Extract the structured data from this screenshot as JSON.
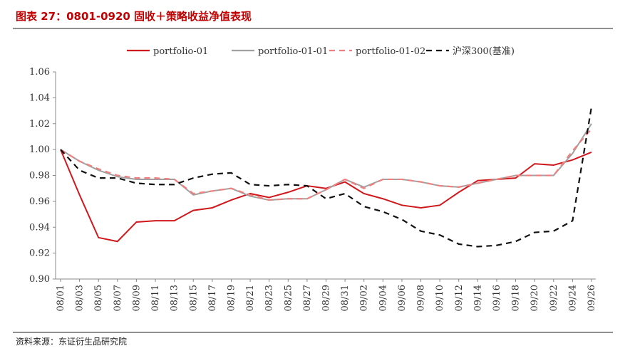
{
  "title": "图表 27：0801-0920 固收＋策略收益净值表现",
  "source": "资料来源：东证衍生品研究院",
  "chart_data": {
    "type": "line",
    "categories": [
      "08/01",
      "08/03",
      "08/05",
      "08/07",
      "08/09",
      "08/11",
      "08/13",
      "08/15",
      "08/17",
      "08/19",
      "08/21",
      "08/23",
      "08/25",
      "08/27",
      "08/29",
      "08/31",
      "09/02",
      "09/04",
      "09/06",
      "09/08",
      "09/10",
      "09/12",
      "09/14",
      "09/16",
      "09/18",
      "09/20",
      "09/22",
      "09/24",
      "09/26"
    ],
    "series": [
      {
        "name": "portfolio-01",
        "color": "#d0181c",
        "dash": "solid",
        "values": [
          1.0,
          0.965,
          0.932,
          0.929,
          0.944,
          0.945,
          0.945,
          0.953,
          0.955,
          0.961,
          0.966,
          0.963,
          0.967,
          0.972,
          0.97,
          0.975,
          0.966,
          0.962,
          0.957,
          0.955,
          0.957,
          0.967,
          0.976,
          0.977,
          0.978,
          0.989,
          0.988,
          0.992,
          0.998
        ]
      },
      {
        "name": "portfolio-01-01",
        "color": "#a0a0a0",
        "dash": "solid",
        "values": [
          1.0,
          0.991,
          0.984,
          0.979,
          0.977,
          0.977,
          0.977,
          0.965,
          0.968,
          0.97,
          0.964,
          0.961,
          0.962,
          0.962,
          0.969,
          0.977,
          0.971,
          0.977,
          0.977,
          0.975,
          0.972,
          0.971,
          0.974,
          0.977,
          0.98,
          0.98,
          0.98,
          0.997,
          1.02
        ]
      },
      {
        "name": "portfolio-01-02",
        "color": "#f08080",
        "dash": "dashed",
        "values": [
          1.0,
          0.991,
          0.985,
          0.98,
          0.978,
          0.978,
          0.977,
          0.966,
          0.968,
          0.97,
          0.965,
          0.961,
          0.962,
          0.962,
          0.969,
          0.977,
          0.97,
          0.977,
          0.977,
          0.975,
          0.972,
          0.971,
          0.974,
          0.977,
          0.98,
          0.98,
          0.98,
          0.999,
          1.016
        ]
      },
      {
        "name": "沪深300(基准)",
        "color": "#111111",
        "dash": "dashed",
        "values": [
          1.0,
          0.984,
          0.978,
          0.978,
          0.974,
          0.973,
          0.973,
          0.978,
          0.981,
          0.982,
          0.973,
          0.972,
          0.973,
          0.972,
          0.962,
          0.966,
          0.956,
          0.952,
          0.946,
          0.937,
          0.934,
          0.927,
          0.925,
          0.926,
          0.929,
          0.936,
          0.937,
          0.945,
          1.033
        ]
      }
    ],
    "ylim": [
      0.9,
      1.06
    ],
    "yticks": [
      {
        "value": 0.9,
        "label": "0.90"
      },
      {
        "value": 0.92,
        "label": "0.92"
      },
      {
        "value": 0.94,
        "label": "0.94"
      },
      {
        "value": 0.96,
        "label": "0.96"
      },
      {
        "value": 0.98,
        "label": "0.98"
      },
      {
        "value": 1.0,
        "label": "1.00"
      },
      {
        "value": 1.02,
        "label": "1.02"
      },
      {
        "value": 1.04,
        "label": "1.04"
      },
      {
        "value": 1.06,
        "label": "1.06"
      }
    ],
    "legend": "top",
    "grid": false
  }
}
